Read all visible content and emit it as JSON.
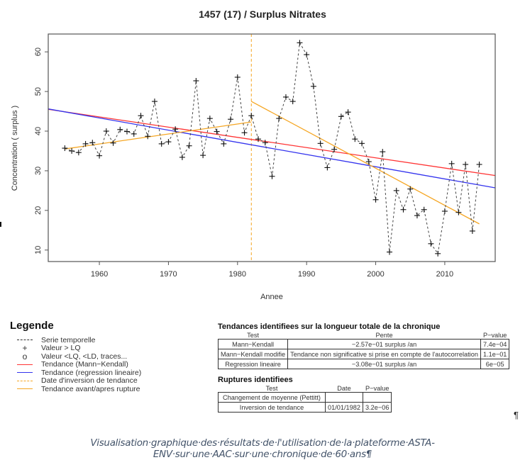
{
  "chart_data": {
    "type": "line",
    "title": "1457 (17) / Surplus Nitrates",
    "xlabel": "Annee",
    "ylabel": "Concentration ( surplus )",
    "xlim": [
      1952.6,
      2017.3
    ],
    "ylim": [
      7.1,
      64.5
    ],
    "xticks": [
      1960,
      1970,
      1980,
      1990,
      2000,
      2010
    ],
    "yticks": [
      10,
      20,
      30,
      40,
      50,
      60
    ],
    "grid": false,
    "series": [
      {
        "name": "Serie temporelle",
        "style": "dashed",
        "color": "#333333",
        "marker": "+",
        "x": [
          1955,
          1956,
          1957,
          1958,
          1959,
          1960,
          1961,
          1962,
          1963,
          1964,
          1965,
          1966,
          1967,
          1968,
          1969,
          1970,
          1971,
          1972,
          1973,
          1974,
          1975,
          1976,
          1977,
          1978,
          1979,
          1980,
          1981,
          1982,
          1983,
          1984,
          1985,
          1986,
          1987,
          1988,
          1989,
          1990,
          1991,
          1992,
          1993,
          1994,
          1995,
          1996,
          1997,
          1998,
          1999,
          2000,
          2001,
          2002,
          2003,
          2004,
          2005,
          2006,
          2007,
          2008,
          2009,
          2010,
          2011,
          2012,
          2013,
          2014,
          2015
        ],
        "values": [
          35.7,
          35.0,
          34.6,
          36.8,
          37.1,
          33.8,
          40.0,
          37.0,
          40.4,
          39.9,
          39.3,
          43.9,
          38.7,
          47.5,
          36.8,
          37.3,
          40.5,
          33.4,
          36.3,
          52.7,
          33.9,
          43.2,
          39.9,
          36.8,
          43.0,
          53.6,
          39.6,
          43.9,
          38.0,
          37.1,
          28.6,
          43.2,
          48.6,
          47.5,
          62.3,
          59.3,
          51.3,
          36.9,
          30.8,
          35.4,
          43.7,
          44.8,
          38.0,
          36.9,
          32.3,
          22.7,
          34.8,
          9.5,
          25.0,
          20.2,
          25.4,
          18.7,
          20.2,
          11.6,
          9.1,
          19.8,
          31.8,
          19.5,
          31.6,
          14.8,
          31.6
        ]
      },
      {
        "name": "Tendance (Mann-Kendall)",
        "style": "solid",
        "color": "#ff3333",
        "x": [
          1952.6,
          2017.3
        ],
        "values": [
          45.5,
          28.8
        ]
      },
      {
        "name": "Tendance (regression lineaire)",
        "style": "solid",
        "color": "#3333ee",
        "x": [
          1952.6,
          2017.3
        ],
        "values": [
          45.6,
          25.7
        ]
      },
      {
        "name": "Tendance avant rupture",
        "style": "solid",
        "color": "#f5a623",
        "x": [
          1955,
          1982
        ],
        "values": [
          35.5,
          42.3
        ]
      },
      {
        "name": "Tendance apres rupture",
        "style": "solid",
        "color": "#f5a623",
        "x": [
          1982,
          2015
        ],
        "values": [
          47.5,
          16.6
        ]
      }
    ],
    "annotations": [
      {
        "type": "vline",
        "x": 1982,
        "style": "dashed",
        "color": "#f5a623",
        "label": "Date d'inversion de tendance"
      }
    ]
  },
  "legend": {
    "title": "Legende",
    "items": [
      {
        "symbol": "dash",
        "color": "#333333",
        "label": "Serie temporelle"
      },
      {
        "symbol": "+",
        "color": "#333333",
        "label": "Valeur > LQ"
      },
      {
        "symbol": "o",
        "color": "#333333",
        "label": "Valeur <LQ, <LD, traces..."
      },
      {
        "symbol": "line",
        "color": "#ff3333",
        "label": "Tendance (Mann−Kendall)"
      },
      {
        "symbol": "line",
        "color": "#3333ee",
        "label": "Tendance (regression lineaire)"
      },
      {
        "symbol": "dash",
        "color": "#f5a623",
        "label": "Date d'inversion de tendance"
      },
      {
        "symbol": "line",
        "color": "#f5a623",
        "label": "Tendance avant/apres rupture"
      }
    ]
  },
  "trends_table": {
    "title": "Tendances identifiees sur la longueur totale de la chronique",
    "headers": [
      "Test",
      "Pente",
      "P−value"
    ],
    "rows": [
      [
        "Mann−Kendall",
        "−2.57e−01 surplus /an",
        "7.4e−04"
      ],
      [
        "Mann−Kendall modifie",
        "Tendance non significative si prise en compte de l'autocorrelation",
        "1.1e−01"
      ],
      [
        "Regression lineaire",
        "−3.08e−01 surplus /an",
        "6e−05"
      ]
    ]
  },
  "ruptures_table": {
    "title": "Ruptures identifiees",
    "headers": [
      "Test",
      "Date",
      "P−value"
    ],
    "rows": [
      [
        "Changement de moyenne (Pettitt)",
        "",
        ""
      ],
      [
        "Inversion de tendance",
        "01/01/1982",
        "3.2e−06"
      ]
    ]
  },
  "document": {
    "pilcrow": "¶",
    "caption": "Visualisation·graphique·des·résultats·de·l'utilisation·de·la·plateforme·ASTA-ENV·sur·une·AAC·sur·une·chronique·de·60·ans¶"
  }
}
